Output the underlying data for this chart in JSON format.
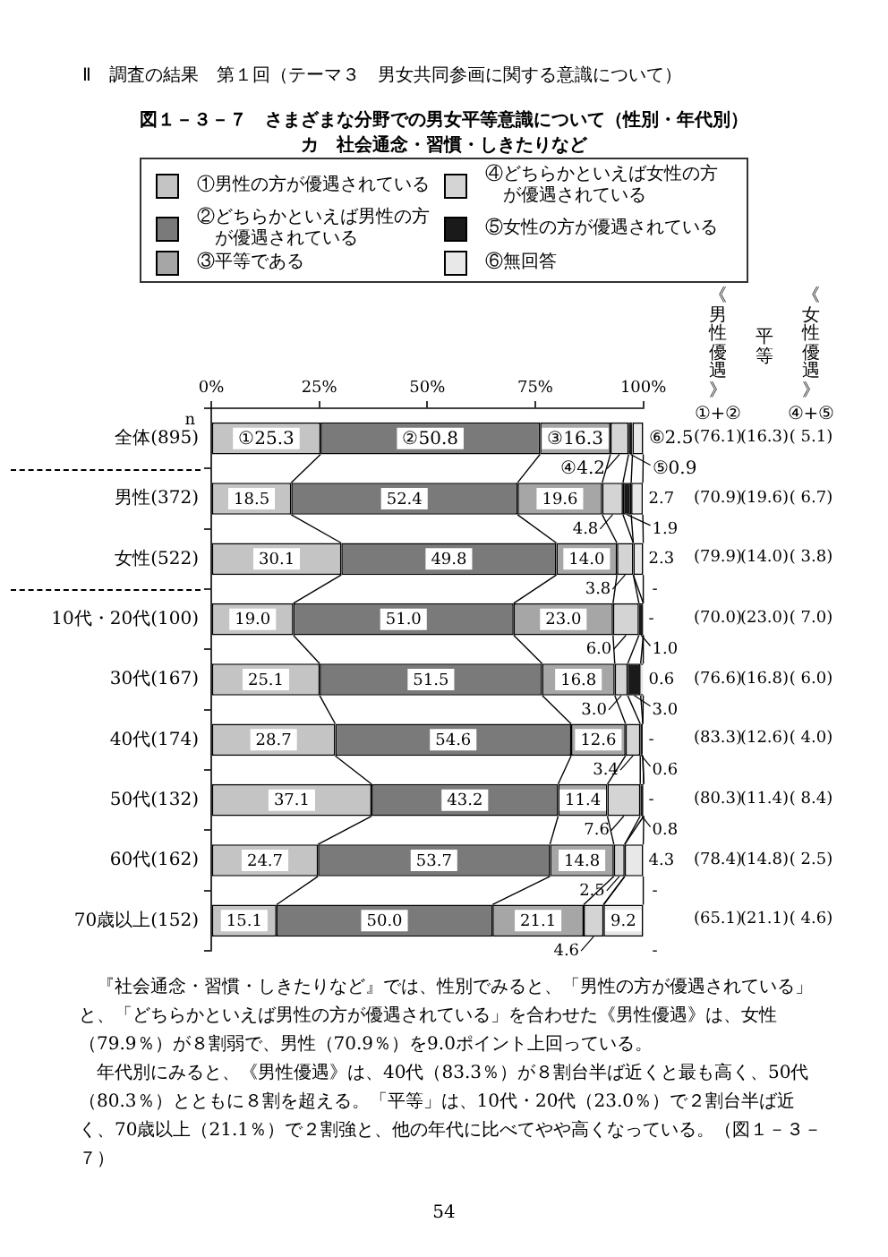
{
  "chart_data": {
    "type": "bar",
    "orientation": "horizontal",
    "stacked": true,
    "title": "図１－３－７　さまざまな分野での男女平等意識について（性別・年代別）",
    "subtitle": "カ　社会通念・習慣・しきたりなど",
    "ylabel": "n",
    "categories": [
      "全体(895)",
      "男性(372)",
      "女性(522)",
      "10代・20代(100)",
      "30代(167)",
      "40代(174)",
      "50代(132)",
      "60代(162)",
      "70歳以上(152)"
    ],
    "series": [
      {
        "name": "①男性の方が優遇されている",
        "color": "#c4c4c4",
        "values": [
          25.3,
          18.5,
          30.1,
          19.0,
          25.1,
          28.7,
          37.1,
          24.7,
          15.1
        ],
        "value_labels": [
          "①25.3",
          "18.5",
          "30.1",
          "19.0",
          "25.1",
          "28.7",
          "37.1",
          "24.7",
          "15.1"
        ]
      },
      {
        "name": "②どちらかといえば男性の方が優遇されている",
        "color": "#7a7a7a",
        "values": [
          50.8,
          52.4,
          49.8,
          51.0,
          51.5,
          54.6,
          43.2,
          53.7,
          50.0
        ],
        "value_labels": [
          "②50.8",
          "52.4",
          "49.8",
          "51.0",
          "51.5",
          "54.6",
          "43.2",
          "53.7",
          "50.0"
        ]
      },
      {
        "name": "③平等である",
        "color": "#a6a6a6",
        "values": [
          16.3,
          19.6,
          14.0,
          23.0,
          16.8,
          12.6,
          11.4,
          14.8,
          21.1
        ],
        "value_labels": [
          "③16.3",
          "19.6",
          "14.0",
          "23.0",
          "16.8",
          "12.6",
          "11.4",
          "14.8",
          "21.1"
        ]
      },
      {
        "name": "④どちらかといえば女性の方が優遇されている",
        "color": "#d4d4d4",
        "values": [
          4.2,
          4.8,
          3.8,
          6.0,
          3.0,
          3.4,
          7.6,
          2.5,
          4.6
        ],
        "value_labels": [
          "④4.2",
          "4.8",
          "3.8",
          "6.0",
          "3.0",
          "3.4",
          "7.6",
          "2.5",
          "4.6"
        ]
      },
      {
        "name": "⑤女性の方が優遇されている",
        "color": "#1a1a1a",
        "values": [
          0.9,
          1.9,
          0,
          1.0,
          3.0,
          0.6,
          0.8,
          0,
          0
        ],
        "value_labels": [
          "⑤0.9",
          "1.9",
          "-",
          "1.0",
          "3.0",
          "0.6",
          "0.8",
          "-",
          "-"
        ]
      },
      {
        "name": "⑥無回答",
        "color": "#e8e8e8",
        "values": [
          2.5,
          2.7,
          2.3,
          0,
          0.6,
          0,
          0,
          4.3,
          9.2
        ],
        "value_labels": [
          "⑥2.5",
          "2.7",
          "2.3",
          "-",
          "0.6",
          "-",
          "-",
          "4.3",
          "9.2"
        ]
      }
    ],
    "xlim": [
      0,
      100
    ],
    "xticks": [
      {
        "value": 0,
        "label": "0%"
      },
      {
        "value": 25,
        "label": "25%"
      },
      {
        "value": 50,
        "label": "50%"
      },
      {
        "value": 75,
        "label": "75%"
      },
      {
        "value": 100,
        "label": "100%"
      }
    ],
    "legend": "top",
    "annotations": [
      "Ⅱ　調査の結果　第１回（テーマ３　男女共同参画に関する意識について）",
      "《男性優遇》",
      "①+②",
      "平等",
      "《女性優遇》",
      "④+⑤",
      "(76.1)",
      "(16.3)",
      "( 5.1)",
      "(70.9)",
      "(19.6)",
      "( 6.7)",
      "(79.9)",
      "(14.0)",
      "( 3.8)",
      "(70.0)",
      "(23.0)",
      "( 7.0)",
      "(76.6)",
      "(16.8)",
      "( 6.0)",
      "(83.3)",
      "(12.6)",
      "( 4.0)",
      "(80.3)",
      "(11.4)",
      "( 8.4)",
      "(78.4)",
      "(14.8)",
      "( 2.5)",
      "(65.1)",
      "(21.1)",
      "( 4.6)",
      "『社会通念・習慣・しきたりなど』では、性別でみると、「男性の方が優遇されている」と、「どちらかといえば男性の方が優遇されている」を合わせた《男性優遇》は、女性（79.9％）が８割弱で、男性（70.9％）を9.0ポイント上回っている。",
      "年代別にみると、《男性優遇》は、40代（83.3％）が８割台半ば近くと最も高く、50代（80.3％）とともに８割を超える。「平等」は、10代・20代（23.0％）で２割台半ば近く、70歳以上（21.1％）で２割強と、他の年代に比べてやや高くなっている。（図１－３－７）",
      "54"
    ]
  }
}
